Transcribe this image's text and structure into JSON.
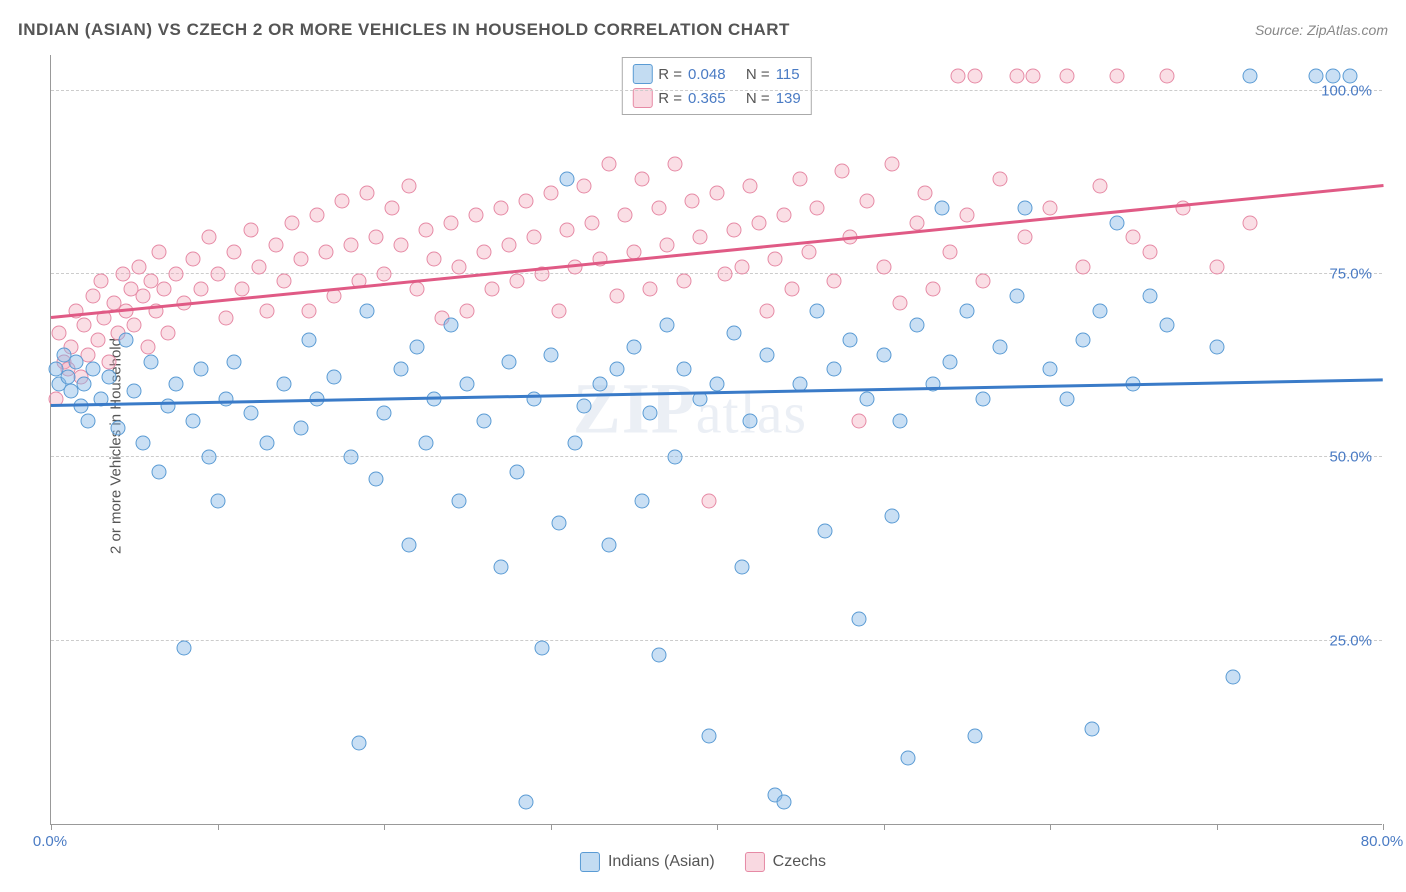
{
  "title": "INDIAN (ASIAN) VS CZECH 2 OR MORE VEHICLES IN HOUSEHOLD CORRELATION CHART",
  "source": "Source: ZipAtlas.com",
  "ylabel": "2 or more Vehicles in Household",
  "watermark": "ZIPatlas",
  "chart": {
    "type": "scatter",
    "xlim": [
      0,
      80
    ],
    "ylim": [
      0,
      105
    ],
    "background_color": "#ffffff",
    "grid_color": "#cccccc",
    "axis_color": "#999999",
    "x_ticks": [
      0,
      10,
      20,
      30,
      40,
      50,
      60,
      70,
      80
    ],
    "x_tick_labels": {
      "0": "0.0%",
      "80": "80.0%"
    },
    "y_ticks": [
      25,
      50,
      75,
      100
    ],
    "y_tick_labels": {
      "25": "25.0%",
      "50": "50.0%",
      "75": "75.0%",
      "100": "100.0%"
    },
    "label_color": "#4a7bc4",
    "label_fontsize": 15,
    "title_fontsize": 17,
    "title_color": "#555555",
    "marker_size": 15,
    "series": [
      {
        "name": "Indians (Asian)",
        "color_fill": "rgba(135,185,230,0.45)",
        "color_stroke": "#5a9bd4",
        "r": "0.048",
        "n": "115",
        "regression": {
          "x1": 0,
          "y1": 57,
          "x2": 80,
          "y2": 60.5,
          "color": "#3a7bc8"
        },
        "points": [
          [
            0.3,
            62
          ],
          [
            0.5,
            60
          ],
          [
            0.8,
            64
          ],
          [
            1,
            61
          ],
          [
            1.2,
            59
          ],
          [
            1.5,
            63
          ],
          [
            1.8,
            57
          ],
          [
            2,
            60
          ],
          [
            2.2,
            55
          ],
          [
            2.5,
            62
          ],
          [
            3,
            58
          ],
          [
            3.5,
            61
          ],
          [
            4,
            54
          ],
          [
            4.5,
            66
          ],
          [
            5,
            59
          ],
          [
            5.5,
            52
          ],
          [
            6,
            63
          ],
          [
            6.5,
            48
          ],
          [
            7,
            57
          ],
          [
            7.5,
            60
          ],
          [
            8,
            24
          ],
          [
            8.5,
            55
          ],
          [
            9,
            62
          ],
          [
            9.5,
            50
          ],
          [
            10,
            44
          ],
          [
            10.5,
            58
          ],
          [
            11,
            63
          ],
          [
            12,
            56
          ],
          [
            13,
            52
          ],
          [
            14,
            60
          ],
          [
            15,
            54
          ],
          [
            15.5,
            66
          ],
          [
            16,
            58
          ],
          [
            17,
            61
          ],
          [
            18,
            50
          ],
          [
            18.5,
            11
          ],
          [
            19,
            70
          ],
          [
            19.5,
            47
          ],
          [
            20,
            56
          ],
          [
            21,
            62
          ],
          [
            21.5,
            38
          ],
          [
            22,
            65
          ],
          [
            22.5,
            52
          ],
          [
            23,
            58
          ],
          [
            24,
            68
          ],
          [
            24.5,
            44
          ],
          [
            25,
            60
          ],
          [
            26,
            55
          ],
          [
            27,
            35
          ],
          [
            27.5,
            63
          ],
          [
            28,
            48
          ],
          [
            28.5,
            3
          ],
          [
            29,
            58
          ],
          [
            29.5,
            24
          ],
          [
            30,
            64
          ],
          [
            30.5,
            41
          ],
          [
            31,
            88
          ],
          [
            31.5,
            52
          ],
          [
            32,
            57
          ],
          [
            33,
            60
          ],
          [
            33.5,
            38
          ],
          [
            34,
            62
          ],
          [
            35,
            65
          ],
          [
            35.5,
            44
          ],
          [
            36,
            56
          ],
          [
            36.5,
            23
          ],
          [
            37,
            68
          ],
          [
            37.5,
            50
          ],
          [
            38,
            62
          ],
          [
            39,
            58
          ],
          [
            39.5,
            12
          ],
          [
            40,
            60
          ],
          [
            41,
            67
          ],
          [
            41.5,
            35
          ],
          [
            42,
            55
          ],
          [
            43,
            64
          ],
          [
            43.5,
            4
          ],
          [
            44,
            3
          ],
          [
            45,
            60
          ],
          [
            46,
            70
          ],
          [
            46.5,
            40
          ],
          [
            47,
            62
          ],
          [
            48,
            66
          ],
          [
            48.5,
            28
          ],
          [
            49,
            58
          ],
          [
            50,
            64
          ],
          [
            50.5,
            42
          ],
          [
            51,
            55
          ],
          [
            51.5,
            9
          ],
          [
            52,
            68
          ],
          [
            53,
            60
          ],
          [
            53.5,
            84
          ],
          [
            54,
            63
          ],
          [
            55,
            70
          ],
          [
            55.5,
            12
          ],
          [
            56,
            58
          ],
          [
            57,
            65
          ],
          [
            58,
            72
          ],
          [
            58.5,
            84
          ],
          [
            60,
            62
          ],
          [
            61,
            58
          ],
          [
            62,
            66
          ],
          [
            62.5,
            13
          ],
          [
            63,
            70
          ],
          [
            64,
            82
          ],
          [
            65,
            60
          ],
          [
            66,
            72
          ],
          [
            67,
            68
          ],
          [
            70,
            65
          ],
          [
            71,
            20
          ],
          [
            72,
            102
          ],
          [
            76,
            102
          ],
          [
            77,
            102
          ],
          [
            78,
            102
          ]
        ]
      },
      {
        "name": "Czechs",
        "color_fill": "rgba(240,160,180,0.35)",
        "color_stroke": "#e68aa5",
        "r": "0.365",
        "n": "139",
        "regression": {
          "x1": 0,
          "y1": 69,
          "x2": 80,
          "y2": 87,
          "color": "#e05a85"
        },
        "points": [
          [
            0.3,
            58
          ],
          [
            0.5,
            67
          ],
          [
            0.8,
            63
          ],
          [
            1,
            62
          ],
          [
            1.2,
            65
          ],
          [
            1.5,
            70
          ],
          [
            1.8,
            61
          ],
          [
            2,
            68
          ],
          [
            2.2,
            64
          ],
          [
            2.5,
            72
          ],
          [
            2.8,
            66
          ],
          [
            3,
            74
          ],
          [
            3.2,
            69
          ],
          [
            3.5,
            63
          ],
          [
            3.8,
            71
          ],
          [
            4,
            67
          ],
          [
            4.3,
            75
          ],
          [
            4.5,
            70
          ],
          [
            4.8,
            73
          ],
          [
            5,
            68
          ],
          [
            5.3,
            76
          ],
          [
            5.5,
            72
          ],
          [
            5.8,
            65
          ],
          [
            6,
            74
          ],
          [
            6.3,
            70
          ],
          [
            6.5,
            78
          ],
          [
            6.8,
            73
          ],
          [
            7,
            67
          ],
          [
            7.5,
            75
          ],
          [
            8,
            71
          ],
          [
            8.5,
            77
          ],
          [
            9,
            73
          ],
          [
            9.5,
            80
          ],
          [
            10,
            75
          ],
          [
            10.5,
            69
          ],
          [
            11,
            78
          ],
          [
            11.5,
            73
          ],
          [
            12,
            81
          ],
          [
            12.5,
            76
          ],
          [
            13,
            70
          ],
          [
            13.5,
            79
          ],
          [
            14,
            74
          ],
          [
            14.5,
            82
          ],
          [
            15,
            77
          ],
          [
            15.5,
            70
          ],
          [
            16,
            83
          ],
          [
            16.5,
            78
          ],
          [
            17,
            72
          ],
          [
            17.5,
            85
          ],
          [
            18,
            79
          ],
          [
            18.5,
            74
          ],
          [
            19,
            86
          ],
          [
            19.5,
            80
          ],
          [
            20,
            75
          ],
          [
            20.5,
            84
          ],
          [
            21,
            79
          ],
          [
            21.5,
            87
          ],
          [
            22,
            73
          ],
          [
            22.5,
            81
          ],
          [
            23,
            77
          ],
          [
            23.5,
            69
          ],
          [
            24,
            82
          ],
          [
            24.5,
            76
          ],
          [
            25,
            70
          ],
          [
            25.5,
            83
          ],
          [
            26,
            78
          ],
          [
            26.5,
            73
          ],
          [
            27,
            84
          ],
          [
            27.5,
            79
          ],
          [
            28,
            74
          ],
          [
            28.5,
            85
          ],
          [
            29,
            80
          ],
          [
            29.5,
            75
          ],
          [
            30,
            86
          ],
          [
            30.5,
            70
          ],
          [
            31,
            81
          ],
          [
            31.5,
            76
          ],
          [
            32,
            87
          ],
          [
            32.5,
            82
          ],
          [
            33,
            77
          ],
          [
            33.5,
            90
          ],
          [
            34,
            72
          ],
          [
            34.5,
            83
          ],
          [
            35,
            78
          ],
          [
            35.5,
            88
          ],
          [
            36,
            73
          ],
          [
            36.5,
            84
          ],
          [
            37,
            79
          ],
          [
            37.5,
            90
          ],
          [
            38,
            74
          ],
          [
            38.5,
            85
          ],
          [
            39,
            80
          ],
          [
            39.5,
            44
          ],
          [
            40,
            86
          ],
          [
            40.5,
            75
          ],
          [
            41,
            81
          ],
          [
            41.5,
            76
          ],
          [
            42,
            87
          ],
          [
            42.5,
            82
          ],
          [
            43,
            70
          ],
          [
            43.5,
            77
          ],
          [
            44,
            83
          ],
          [
            44.5,
            73
          ],
          [
            45,
            88
          ],
          [
            45.5,
            78
          ],
          [
            46,
            84
          ],
          [
            47,
            74
          ],
          [
            47.5,
            89
          ],
          [
            48,
            80
          ],
          [
            48.5,
            55
          ],
          [
            49,
            85
          ],
          [
            50,
            76
          ],
          [
            50.5,
            90
          ],
          [
            51,
            71
          ],
          [
            52,
            82
          ],
          [
            52.5,
            86
          ],
          [
            53,
            73
          ],
          [
            54,
            78
          ],
          [
            54.5,
            102
          ],
          [
            55,
            83
          ],
          [
            55.5,
            102
          ],
          [
            56,
            74
          ],
          [
            57,
            88
          ],
          [
            58,
            102
          ],
          [
            58.5,
            80
          ],
          [
            59,
            102
          ],
          [
            60,
            84
          ],
          [
            61,
            102
          ],
          [
            62,
            76
          ],
          [
            63,
            87
          ],
          [
            64,
            102
          ],
          [
            65,
            80
          ],
          [
            66,
            78
          ],
          [
            67,
            102
          ],
          [
            68,
            84
          ],
          [
            70,
            76
          ],
          [
            72,
            82
          ]
        ]
      }
    ]
  },
  "corr_legend": {
    "r_label": "R =",
    "n_label": "N ="
  },
  "bottom_legend": {
    "items": [
      "Indians (Asian)",
      "Czechs"
    ]
  }
}
